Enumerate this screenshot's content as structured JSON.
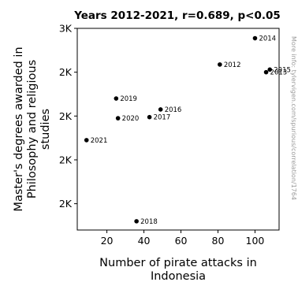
{
  "chart_data": {
    "type": "scatter",
    "title": "Years 2012-2021, r=0.689, p<0.05",
    "xlabel_lines": [
      "Number of pirate attacks in",
      "Indonesia"
    ],
    "ylabel_lines": [
      "Master's degrees awarded in",
      "Philosophy and religious",
      "studies"
    ],
    "xlim": [
      4,
      113
    ],
    "ylim": [
      1.78,
      2.7
    ],
    "x_ticks": [
      {
        "value": 20,
        "label": "20"
      },
      {
        "value": 40,
        "label": "40"
      },
      {
        "value": 60,
        "label": "60"
      },
      {
        "value": 80,
        "label": "80"
      },
      {
        "value": 100,
        "label": "100"
      }
    ],
    "y_ticks": [
      {
        "value": 2.7,
        "label": "3K"
      },
      {
        "value": 2.5,
        "label": "2K"
      },
      {
        "value": 2.3,
        "label": "2K"
      },
      {
        "value": 2.1,
        "label": "2K"
      },
      {
        "value": 1.9,
        "label": "2K"
      }
    ],
    "points": [
      {
        "label": "2012",
        "x": 81,
        "y": 2.535
      },
      {
        "label": "2013",
        "x": 106,
        "y": 2.5
      },
      {
        "label": "2014",
        "x": 100,
        "y": 2.655
      },
      {
        "label": "2015",
        "x": 108,
        "y": 2.512
      },
      {
        "label": "2016",
        "x": 49,
        "y": 2.33
      },
      {
        "label": "2017",
        "x": 43,
        "y": 2.295
      },
      {
        "label": "2018",
        "x": 36,
        "y": 1.82
      },
      {
        "label": "2019",
        "x": 25,
        "y": 2.38
      },
      {
        "label": "2020",
        "x": 26,
        "y": 2.29
      },
      {
        "label": "2021",
        "x": 9,
        "y": 2.19
      }
    ],
    "grid": false,
    "marker_color": "#000000"
  },
  "watermark": "More info: tylervigen.com/spurious/correlation/1764"
}
